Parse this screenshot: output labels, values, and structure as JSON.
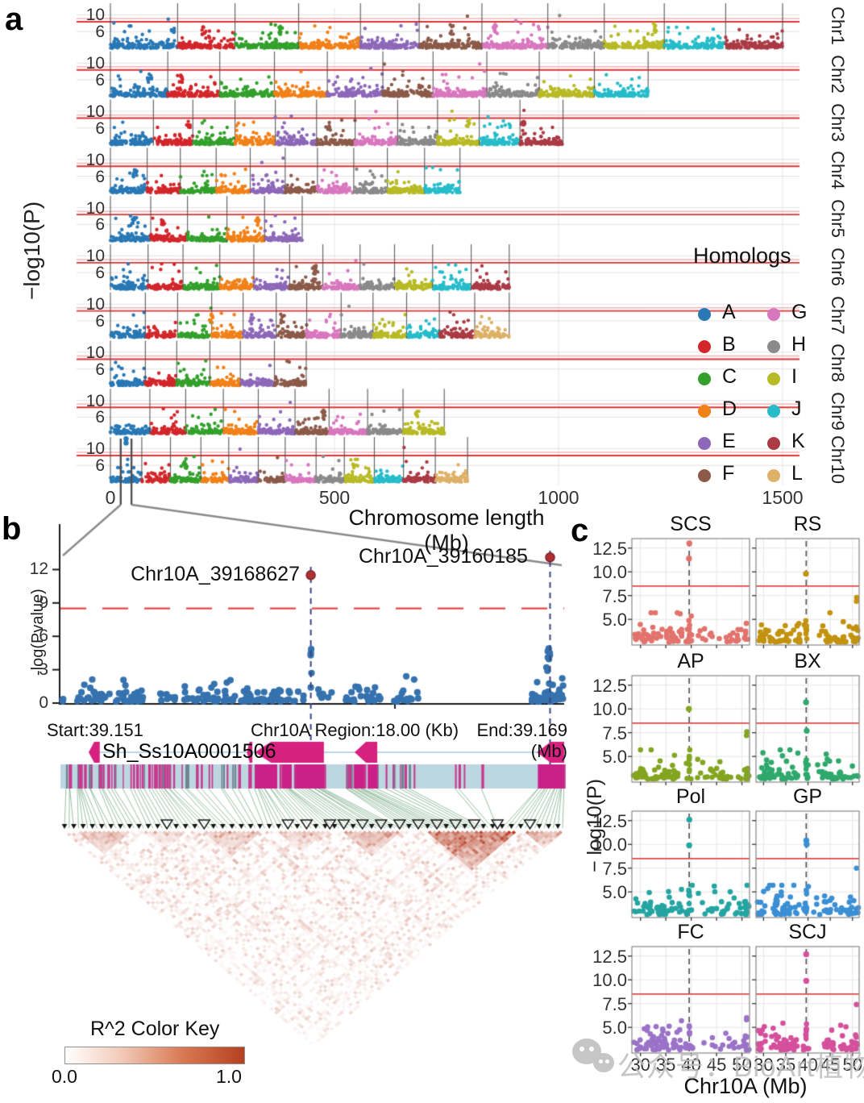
{
  "watermark": {
    "text": "公众号：BioArt植物"
  },
  "chart_data": [
    {
      "panel": "a",
      "type": "scatter",
      "panel_label": "a",
      "ylabel": "−log10(P)",
      "xlabel": "Chromosome length (Mb)",
      "x_ticks": [
        "0",
        "500",
        "1000",
        "1500"
      ],
      "x_tick_values": [
        0,
        500,
        1000,
        1500
      ],
      "x_max_mb": 1500,
      "row_y_ticks": [
        "10",
        "6"
      ],
      "row_y_tick_values": [
        10,
        6
      ],
      "threshold_red": 8.35,
      "threshold_pink": 9.1,
      "legend": {
        "title": "Homologs",
        "entries": [
          {
            "label": "A",
            "color": "#2878b5"
          },
          {
            "label": "B",
            "color": "#d2262b"
          },
          {
            "label": "C",
            "color": "#33a02c"
          },
          {
            "label": "D",
            "color": "#f08018"
          },
          {
            "label": "E",
            "color": "#8d68b8"
          },
          {
            "label": "F",
            "color": "#8c5a49"
          },
          {
            "label": "G",
            "color": "#d877be"
          },
          {
            "label": "H",
            "color": "#8a8a8a"
          },
          {
            "label": "I",
            "color": "#b8ba25"
          },
          {
            "label": "J",
            "color": "#26bcca"
          },
          {
            "label": "K",
            "color": "#aa3a44"
          },
          {
            "label": "L",
            "color": "#ddb166"
          }
        ]
      },
      "rows": [
        {
          "name": "Chr1",
          "homologs": [
            "A",
            "B",
            "C",
            "D",
            "E",
            "F",
            "G",
            "H",
            "I",
            "J",
            "K"
          ],
          "lengths_mb": [
            150,
            128,
            142,
            138,
            131,
            140,
            147,
            126,
            134,
            137,
            127
          ]
        },
        {
          "name": "Chr2",
          "homologs": [
            "A",
            "B",
            "C",
            "D",
            "E",
            "F",
            "G",
            "H",
            "I",
            "J"
          ],
          "lengths_mb": [
            128,
            116,
            122,
            118,
            124,
            112,
            120,
            117,
            123,
            120
          ]
        },
        {
          "name": "Chr3",
          "homologs": [
            "A",
            "B",
            "C",
            "D",
            "E",
            "F",
            "G",
            "H",
            "I",
            "J",
            "K"
          ],
          "lengths_mb": [
            96,
            88,
            94,
            90,
            92,
            86,
            95,
            89,
            93,
            91,
            96
          ]
        },
        {
          "name": "Chr4",
          "homologs": [
            "A",
            "B",
            "C",
            "D",
            "E",
            "F",
            "G",
            "H",
            "I",
            "J"
          ],
          "lengths_mb": [
            82,
            74,
            80,
            76,
            78,
            72,
            81,
            75,
            83,
            79
          ]
        },
        {
          "name": "Chr5",
          "homologs": [
            "A",
            "B",
            "C",
            "D",
            "E"
          ],
          "lengths_mb": [
            90,
            82,
            88,
            84,
            84
          ]
        },
        {
          "name": "Chr6",
          "homologs": [
            "A",
            "B",
            "C",
            "D",
            "E",
            "F",
            "G",
            "H",
            "I",
            "J",
            "K"
          ],
          "lengths_mb": [
            84,
            78,
            82,
            76,
            80,
            74,
            83,
            77,
            85,
            86,
            85
          ]
        },
        {
          "name": "Chr7",
          "homologs": [
            "A",
            "B",
            "C",
            "D",
            "E",
            "F",
            "G",
            "H",
            "I",
            "J",
            "K",
            "L"
          ],
          "lengths_mb": [
            78,
            72,
            76,
            70,
            74,
            68,
            77,
            71,
            75,
            73,
            79,
            77
          ]
        },
        {
          "name": "Chr8",
          "homologs": [
            "A",
            "B",
            "C",
            "D",
            "E",
            "F"
          ],
          "lengths_mb": [
            78,
            70,
            74,
            68,
            76,
            71
          ]
        },
        {
          "name": "Chr9",
          "homologs": [
            "A",
            "B",
            "C",
            "D",
            "E",
            "F",
            "G",
            "H",
            "I"
          ],
          "lengths_mb": [
            88,
            80,
            84,
            78,
            82,
            76,
            86,
            79,
            92
          ]
        },
        {
          "name": "Chr10",
          "homologs": [
            "A",
            "B",
            "C",
            "D",
            "E",
            "F",
            "G",
            "H",
            "I",
            "J",
            "K",
            "L"
          ],
          "lengths_mb": [
            70,
            64,
            68,
            62,
            66,
            60,
            69,
            63,
            67,
            65,
            71,
            72
          ]
        }
      ],
      "zoom_region": {
        "row": "Chr10",
        "mb": [
          23,
          47
        ],
        "high_points": [
          11.35,
          12.35
        ]
      }
    },
    {
      "panel": "b",
      "type": "scatter",
      "panel_label": "b",
      "ylabel": "-log(Pvalue)",
      "y_ticks": [
        "0",
        "3",
        "6",
        "9",
        "12"
      ],
      "y_tick_values": [
        0,
        3,
        6,
        9,
        12
      ],
      "threshold": 8.5,
      "point_color": "#3572ae",
      "snps": [
        {
          "id": "Chr10A_39168627",
          "x_frac": 0.497,
          "neg_log_p": 11.5
        },
        {
          "id": "Chr10A_39160185",
          "x_frac": 0.972,
          "neg_log_p": 13.1
        }
      ],
      "footer": {
        "start": "Start:39.151",
        "region": "Chr10A Region:18.00 (Kb)",
        "end": "End:39.169 (Mb)"
      },
      "gene": {
        "name": "Sh_Ss10A0001506",
        "color": "#d6217f"
      },
      "color_key": {
        "title": "R^2 Color Key",
        "min": "0.0",
        "max": "1.0",
        "max_color": "#b5401f"
      },
      "clusters": [
        {
          "x0": 0.002,
          "x1": 0.014,
          "n": 3,
          "vmax": 0.6
        },
        {
          "x0": 0.032,
          "x1": 0.099,
          "n": 26,
          "vmax": 2.1
        },
        {
          "x0": 0.104,
          "x1": 0.165,
          "n": 30,
          "vmax": 2.2
        },
        {
          "x0": 0.197,
          "x1": 0.232,
          "n": 9,
          "vmax": 1.6
        },
        {
          "x0": 0.245,
          "x1": 0.408,
          "n": 70,
          "vmax": 2.3
        },
        {
          "x0": 0.413,
          "x1": 0.485,
          "n": 26,
          "vmax": 2.0
        },
        {
          "x0": 0.507,
          "x1": 0.539,
          "n": 8,
          "vmax": 1.2
        },
        {
          "x0": 0.565,
          "x1": 0.635,
          "n": 26,
          "vmax": 2.9
        },
        {
          "x0": 0.658,
          "x1": 0.718,
          "n": 16,
          "vmax": 3.1
        },
        {
          "x0": 0.936,
          "x1": 1.0,
          "n": 40,
          "vmax": 2.2
        }
      ],
      "snp_columns": [
        {
          "x_frac": 0.497,
          "values": [
            4.85,
            4.5,
            4.3,
            2.7,
            1.4
          ]
        },
        {
          "x_frac": 0.968,
          "values": [
            4.9,
            4.65,
            4.5,
            4.3,
            4.1,
            3.95,
            3.2,
            2.9
          ]
        }
      ],
      "gene_features": [
        {
          "x0": 0.056,
          "x1": 0.078
        },
        {
          "x0": 0.37,
          "x1": 0.381
        },
        {
          "x0": 0.386,
          "x1": 0.523
        },
        {
          "x0": 0.584,
          "x1": 0.629
        },
        {
          "x0": 0.946,
          "x1": 1.0
        }
      ],
      "stripe_clusters": [
        {
          "x0": 0.003,
          "x1": 0.264,
          "n": 58
        },
        {
          "x0": 0.269,
          "x1": 0.363,
          "n": 12
        },
        {
          "x0": 0.37,
          "x1": 0.523,
          "n": 30
        },
        {
          "x0": 0.565,
          "x1": 0.632,
          "n": 16
        },
        {
          "x0": 0.638,
          "x1": 0.715,
          "n": 8
        },
        {
          "x0": 0.777,
          "x1": 0.85,
          "n": 4
        },
        {
          "x0": 0.946,
          "x1": 1.0,
          "n": 14
        }
      ],
      "stripe_blocks": [
        [
          0.386,
          0.43
        ],
        [
          0.44,
          0.459
        ],
        [
          0.466,
          0.523
        ],
        [
          0.584,
          0.603
        ],
        [
          0.61,
          0.629
        ],
        [
          0.948,
          1.0
        ]
      ]
    },
    {
      "panel": "c",
      "type": "scatter",
      "panel_label": "c",
      "ylabel": "− log10(P)",
      "xlabel": "Chr10A (Mb)",
      "y_ticks": [
        "12.5",
        "10.0",
        "7.5",
        "5.0"
      ],
      "y_tick_values": [
        12.5,
        10,
        7.5,
        5
      ],
      "x_ticks": [
        "30",
        "35",
        "40",
        "45",
        "50"
      ],
      "x_tick_values": [
        30,
        35,
        40,
        45,
        50
      ],
      "threshold": 8.5,
      "peak_mb": 39.6,
      "x_range": [
        28.3,
        51.5
      ],
      "facets": [
        {
          "title": "SCS",
          "color": "#e2736c",
          "significant": [
            13.0,
            11.4
          ],
          "edge": []
        },
        {
          "title": "RS",
          "color": "#c3920e",
          "significant": [
            9.8
          ],
          "edge": [
            7.3,
            6.9
          ]
        },
        {
          "title": "AP",
          "color": "#84a520",
          "significant": [
            10.0
          ],
          "edge": [
            7.6,
            7.2
          ]
        },
        {
          "title": "BX",
          "color": "#2fa86c",
          "significant": [
            10.7,
            7.7
          ],
          "edge": []
        },
        {
          "title": "Pol",
          "color": "#24a5a2",
          "significant": [
            12.6,
            9.9
          ],
          "edge": []
        },
        {
          "title": "GP",
          "color": "#3b8fd4",
          "significant": [
            10.4,
            10.0
          ],
          "edge": [
            7.5
          ]
        },
        {
          "title": "FC",
          "color": "#9a72c8",
          "significant": [],
          "edge": [
            6.0,
            5.8
          ]
        },
        {
          "title": "SCJ",
          "color": "#d4509c",
          "significant": [
            12.7,
            9.9
          ],
          "edge": [
            7.4
          ]
        }
      ]
    }
  ]
}
